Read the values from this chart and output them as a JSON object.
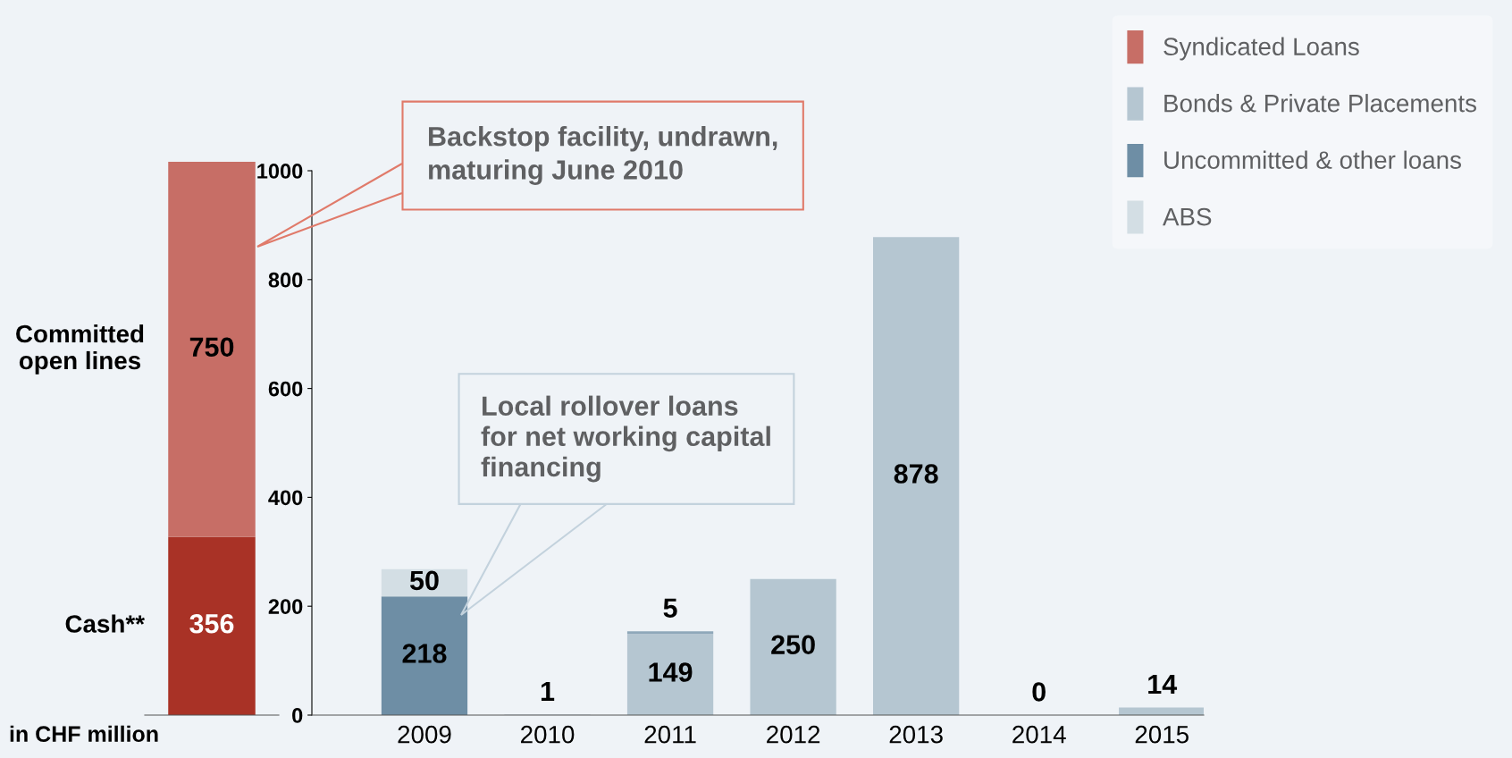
{
  "chart_data": [
    {
      "type": "bar",
      "stacked": true,
      "categories": [
        null
      ],
      "ylim": [
        0,
        1106
      ],
      "tick_labels": false,
      "data_labels": true,
      "series": [
        {
          "name": "Cash**",
          "color": "#a93226",
          "values": [
            356
          ]
        },
        {
          "name": "Syndicated Loans",
          "color": "#c76e66",
          "values": [
            750
          ]
        }
      ],
      "annotations": [
        "Committed open lines",
        "in CHF million",
        "Backstop facility, undrawn,\nmaturing June 2010"
      ]
    },
    {
      "type": "bar",
      "stacked": true,
      "categories": [
        "2009",
        "2010",
        "2011",
        "2012",
        "2013",
        "2014",
        "2015"
      ],
      "ylim": [
        0,
        1000
      ],
      "yticks": [
        0,
        200,
        400,
        600,
        800,
        1000
      ],
      "data_labels": true,
      "legend": "top right",
      "series": [
        {
          "name": "Uncommitted & other loans",
          "color": "#6e8ea5",
          "values": [
            218,
            null,
            null,
            null,
            null,
            null,
            null
          ]
        },
        {
          "name": "Bonds & Private Placements",
          "color": "#b5c6d1",
          "values": [
            null,
            1,
            149,
            250,
            878,
            0,
            14
          ]
        },
        {
          "color": "#8fa8ba",
          "values": [
            null,
            null,
            5,
            null,
            null,
            null,
            null
          ]
        },
        {
          "name": "ABS",
          "color": "#d3dee4",
          "values": [
            50,
            null,
            null,
            null,
            null,
            null,
            null
          ]
        }
      ],
      "annotations": [
        "Local rollover loans\nfor net working capital\nfinancing"
      ]
    }
  ]
}
